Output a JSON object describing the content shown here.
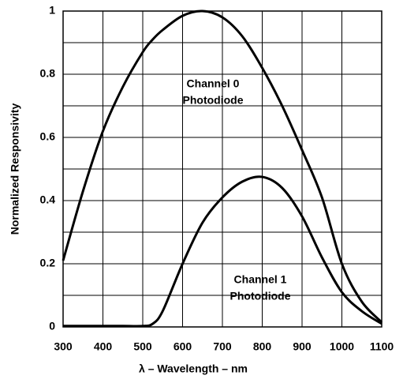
{
  "chart_data": {
    "type": "line",
    "xlabel": "λ – Wavelength – nm",
    "ylabel": "Normalized Responsivity",
    "x": [
      300,
      350,
      400,
      450,
      500,
      525,
      550,
      600,
      650,
      700,
      750,
      800,
      850,
      900,
      950,
      1000,
      1050,
      1100
    ],
    "series": [
      {
        "label": [
          "Channel 0",
          "Photodiode"
        ],
        "color": "#000000",
        "values": [
          0.21,
          0.43,
          0.62,
          0.76,
          0.87,
          0.91,
          0.94,
          0.985,
          1.0,
          0.98,
          0.92,
          0.82,
          0.7,
          0.56,
          0.41,
          0.2,
          0.08,
          0.015
        ]
      },
      {
        "label": [
          "Channel 1",
          "Photodiode"
        ],
        "color": "#000000",
        "values": [
          0.003,
          0.003,
          0.003,
          0.003,
          0.003,
          0.01,
          0.05,
          0.2,
          0.33,
          0.41,
          0.46,
          0.475,
          0.44,
          0.35,
          0.22,
          0.11,
          0.05,
          0.01
        ]
      }
    ],
    "xlim": [
      300,
      1100
    ],
    "ylim": [
      0,
      1
    ],
    "xticks": [
      300,
      400,
      500,
      600,
      700,
      800,
      900,
      1000,
      1100
    ],
    "yticks": [
      0,
      0.2,
      0.4,
      0.6,
      0.8,
      1
    ],
    "grid": true
  }
}
